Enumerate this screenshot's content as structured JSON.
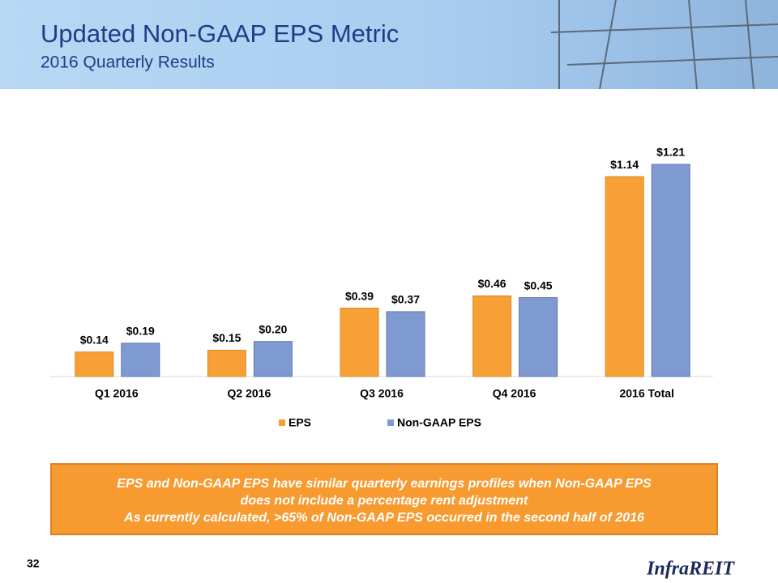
{
  "slide": {
    "title": "Updated Non-GAAP EPS Metric",
    "subtitle": "2016 Quarterly Results",
    "callout": [
      "EPS and Non-GAAP EPS have similar quarterly earnings profiles when Non-GAAP EPS",
      "does not include a percentage rent adjustment",
      "As currently calculated, >65% of Non-GAAP EPS occurred in the second half of 2016"
    ],
    "page_number": "32",
    "logo": "InfraREIT"
  },
  "chart_data": {
    "type": "bar",
    "categories": [
      "Q1 2016",
      "Q2 2016",
      "Q3 2016",
      "Q4 2016",
      "2016 Total"
    ],
    "series": [
      {
        "name": "EPS",
        "color": "#F7A035",
        "values": [
          0.14,
          0.15,
          0.39,
          0.46,
          1.14
        ],
        "value_labels": [
          "$0.14",
          "$0.15",
          "$0.39",
          "$0.46",
          "$1.14"
        ]
      },
      {
        "name": "Non-GAAP EPS",
        "color": "#7F9AD0",
        "values": [
          0.19,
          0.2,
          0.37,
          0.45,
          1.21
        ],
        "value_labels": [
          "$0.19",
          "$0.20",
          "$0.37",
          "$0.45",
          "$1.21"
        ]
      }
    ]
  }
}
